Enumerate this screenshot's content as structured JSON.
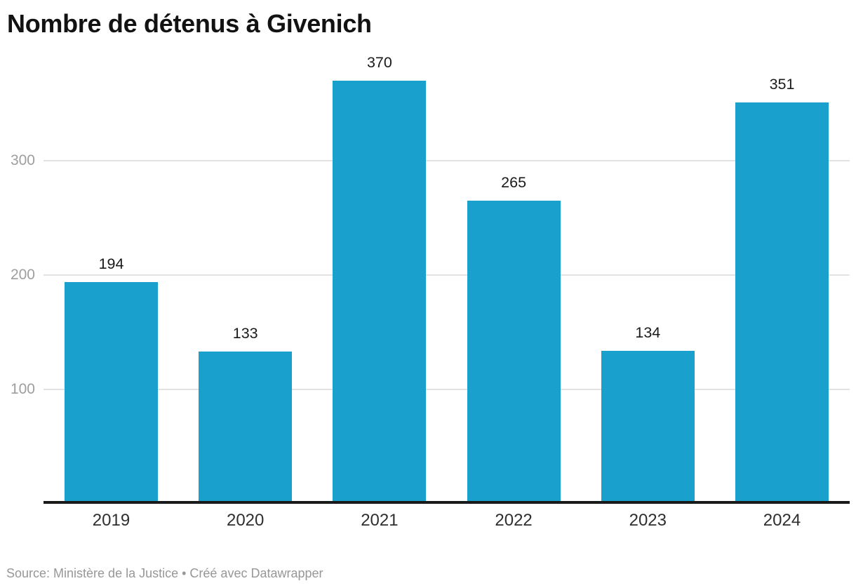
{
  "title": "Nombre de détenus à Givenich",
  "source_note": "Source: Ministère de la Justice • Créé avec Datawrapper",
  "chart_data": {
    "type": "bar",
    "title": "Nombre de détenus à Givenich",
    "categories": [
      "2019",
      "2020",
      "2021",
      "2022",
      "2023",
      "2024"
    ],
    "values": [
      194,
      133,
      370,
      265,
      134,
      351
    ],
    "xlabel": "",
    "ylabel": "",
    "ylim": [
      0,
      400
    ],
    "yticks": [
      100,
      200,
      300
    ],
    "grid": true,
    "legend_position": "none",
    "value_labels": true,
    "bar_color": "#1AA0CD"
  },
  "colors": {
    "bar": "#1AA0CD",
    "gridline": "#E2E2E2",
    "axis_line": "#1A1A1A",
    "tick_text": "#9E9E9E",
    "value_text": "#1A1A1A",
    "cat_text": "#2F2F2F",
    "title_text": "#121212",
    "source_text": "#979797",
    "background": "#FFFFFF"
  }
}
